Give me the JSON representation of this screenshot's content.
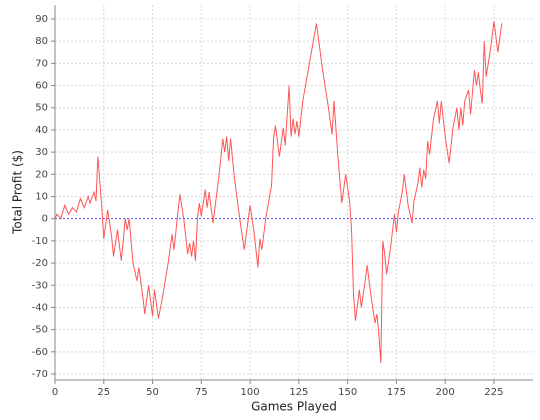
{
  "chart_data": {
    "type": "line",
    "xlabel": "Games Played",
    "ylabel": "Total Profit ($)",
    "x": [
      0,
      1,
      3,
      5,
      7,
      9,
      11,
      13,
      15,
      17,
      18,
      20,
      21,
      22,
      24,
      25,
      27,
      29,
      30,
      32,
      34,
      36,
      37,
      38,
      40,
      42,
      43,
      45,
      46,
      48,
      50,
      51,
      53,
      55,
      58,
      60,
      61,
      63,
      64,
      66,
      68,
      69,
      70,
      71,
      72,
      73,
      74,
      75,
      77,
      78,
      79,
      81,
      84,
      86,
      87,
      88,
      89,
      90,
      92,
      95,
      97,
      100,
      102,
      104,
      105,
      106,
      108,
      111,
      112,
      113,
      115,
      117,
      118,
      120,
      121,
      122,
      123,
      124,
      125,
      127,
      130,
      134,
      137,
      140,
      142,
      143,
      145,
      147,
      149,
      151,
      152,
      153,
      154,
      156,
      157,
      159,
      160,
      162,
      164,
      165,
      166,
      167,
      168,
      169,
      170,
      172,
      174,
      175,
      176,
      178,
      179,
      181,
      183,
      184,
      186,
      187,
      188,
      189,
      190,
      191,
      192,
      194,
      196,
      197,
      198,
      200,
      202,
      204,
      206,
      207,
      208,
      209,
      210,
      212,
      213,
      215,
      216,
      217,
      218,
      219,
      220,
      221,
      223,
      225,
      227,
      229
    ],
    "values": [
      0,
      2,
      0,
      6,
      2,
      5,
      3,
      9,
      5,
      10,
      7,
      12,
      8,
      28,
      5,
      -9,
      4,
      -8,
      -17,
      -5,
      -19,
      0,
      -5,
      0,
      -20,
      -28,
      -22,
      -35,
      -43,
      -30,
      -44,
      -32,
      -45,
      -36,
      -20,
      -7,
      -14,
      3,
      11,
      0,
      -16,
      -11,
      -17,
      -10,
      -19,
      0,
      7,
      1,
      13,
      5,
      12,
      -2,
      19,
      36,
      30,
      37,
      26,
      36,
      18,
      -2,
      -14,
      6,
      -6,
      -22,
      -9,
      -14,
      0,
      15,
      36,
      42,
      28,
      41,
      33,
      60,
      37,
      45,
      38,
      44,
      37,
      53,
      68,
      88,
      68,
      51,
      38,
      53,
      28,
      7,
      20,
      8,
      -5,
      -34,
      -46,
      -32,
      -40,
      -28,
      -21,
      -35,
      -47,
      -43,
      -52,
      -65,
      -10,
      -16,
      -25,
      -13,
      2,
      -6,
      3,
      12,
      20,
      6,
      -2,
      8,
      16,
      23,
      14,
      22,
      18,
      35,
      29,
      45,
      53,
      43,
      53,
      37,
      25,
      41,
      50,
      40,
      50,
      42,
      53,
      58,
      47,
      67,
      60,
      66,
      58,
      52,
      80,
      64,
      75,
      89,
      75,
      88
    ],
    "color": "#ff5555",
    "xlim": [
      0,
      245
    ],
    "ylim": [
      -72.7,
      96.3
    ],
    "xticks": [
      0,
      25,
      50,
      75,
      100,
      125,
      150,
      175,
      200,
      225
    ],
    "yticks": [
      -70,
      -60,
      -50,
      -40,
      -30,
      -20,
      -10,
      0,
      10,
      20,
      30,
      40,
      50,
      60,
      70,
      80,
      90
    ],
    "grid": true,
    "zero_line": {
      "value": 0,
      "color": "#5555ff"
    }
  }
}
